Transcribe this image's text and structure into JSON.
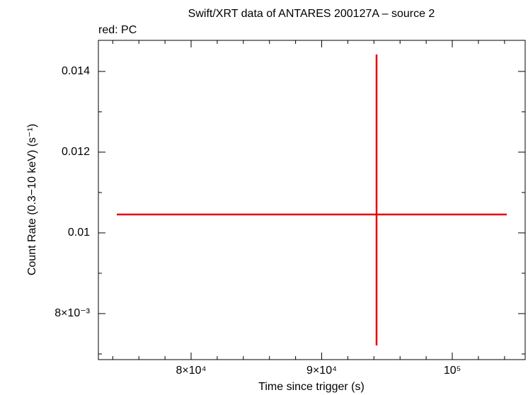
{
  "chart_data": {
    "type": "errorbar",
    "title": "Swift/XRT data of ANTARES 200127A – source 2",
    "subtitle": "red: PC",
    "xlabel": "Time since trigger (s)",
    "ylabel": "Count Rate (0.3−10 keV) (s⁻¹)",
    "xlim": [
      72900,
      105580
    ],
    "ylim": [
      0.00686,
      0.01477
    ],
    "xticks": [
      {
        "value": 80000,
        "label": "8×10⁴"
      },
      {
        "value": 90000,
        "label": "9×10⁴"
      },
      {
        "value": 100000,
        "label": "10⁵"
      }
    ],
    "yticks": [
      {
        "value": 0.008,
        "label": "8×10⁻³"
      },
      0.01,
      0.012,
      0.014
    ],
    "xminorticks": [
      74000,
      76000,
      78000,
      82000,
      84000,
      86000,
      88000,
      92000,
      94000,
      96000,
      98000,
      102000,
      104000
    ],
    "yminorticks": [
      0.007,
      0.009,
      0.011,
      0.013
    ],
    "series": [
      {
        "color": "#e8000b",
        "x": [
          94200
        ],
        "values": [
          0.010456
        ],
        "xerr_minus": [
          19890
        ],
        "xerr_plus": [
          9970
        ],
        "yerr_minus": [
          0.003245
        ],
        "yerr_plus": [
          0.003965
        ]
      }
    ]
  }
}
